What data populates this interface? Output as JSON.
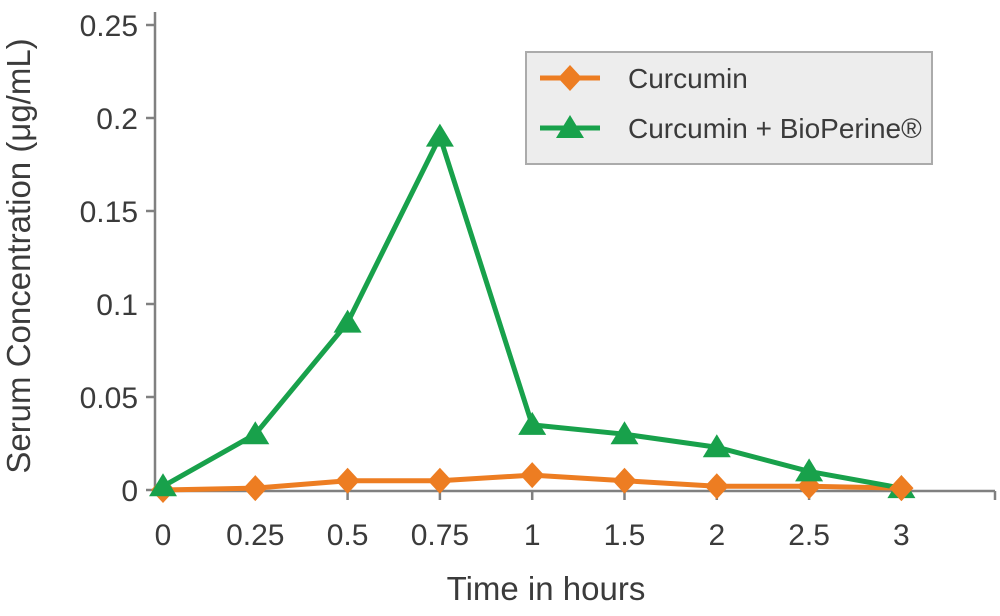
{
  "chart_data": {
    "type": "line",
    "title": "",
    "xlabel": "Time in hours",
    "ylabel": "Serum Concentration (μg/mL)",
    "categories": [
      "0",
      "0.25",
      "0.5",
      "0.75",
      "1",
      "1.5",
      "2",
      "2.5",
      "3"
    ],
    "category_values": [
      0,
      0.25,
      0.5,
      0.75,
      1,
      1.5,
      2,
      2.5,
      3
    ],
    "yticks": [
      "0",
      "0.05",
      "0.1",
      "0.15",
      "0.2",
      "0.25"
    ],
    "ytick_values": [
      0,
      0.05,
      0.1,
      0.15,
      0.2,
      0.25
    ],
    "ylim": [
      0,
      0.25
    ],
    "grid": false,
    "legend_position": "top-right",
    "series": [
      {
        "name": "Curcumin",
        "marker": "diamond",
        "color": "#ED7D22",
        "values": [
          0,
          0.001,
          0.005,
          0.005,
          0.008,
          0.005,
          0.002,
          0.002,
          0.001
        ]
      },
      {
        "name": "Curcumin + BioPerine®",
        "marker": "triangle",
        "color": "#18A14B",
        "values": [
          0.002,
          0.03,
          0.09,
          0.19,
          0.035,
          0.03,
          0.023,
          0.01,
          0.001
        ]
      }
    ],
    "colors": {
      "axis": "#808080",
      "text": "#3B3B3B",
      "legend_bg": "#EDEDED",
      "legend_border": "#ABABAB",
      "background": "#FFFFFF"
    }
  }
}
